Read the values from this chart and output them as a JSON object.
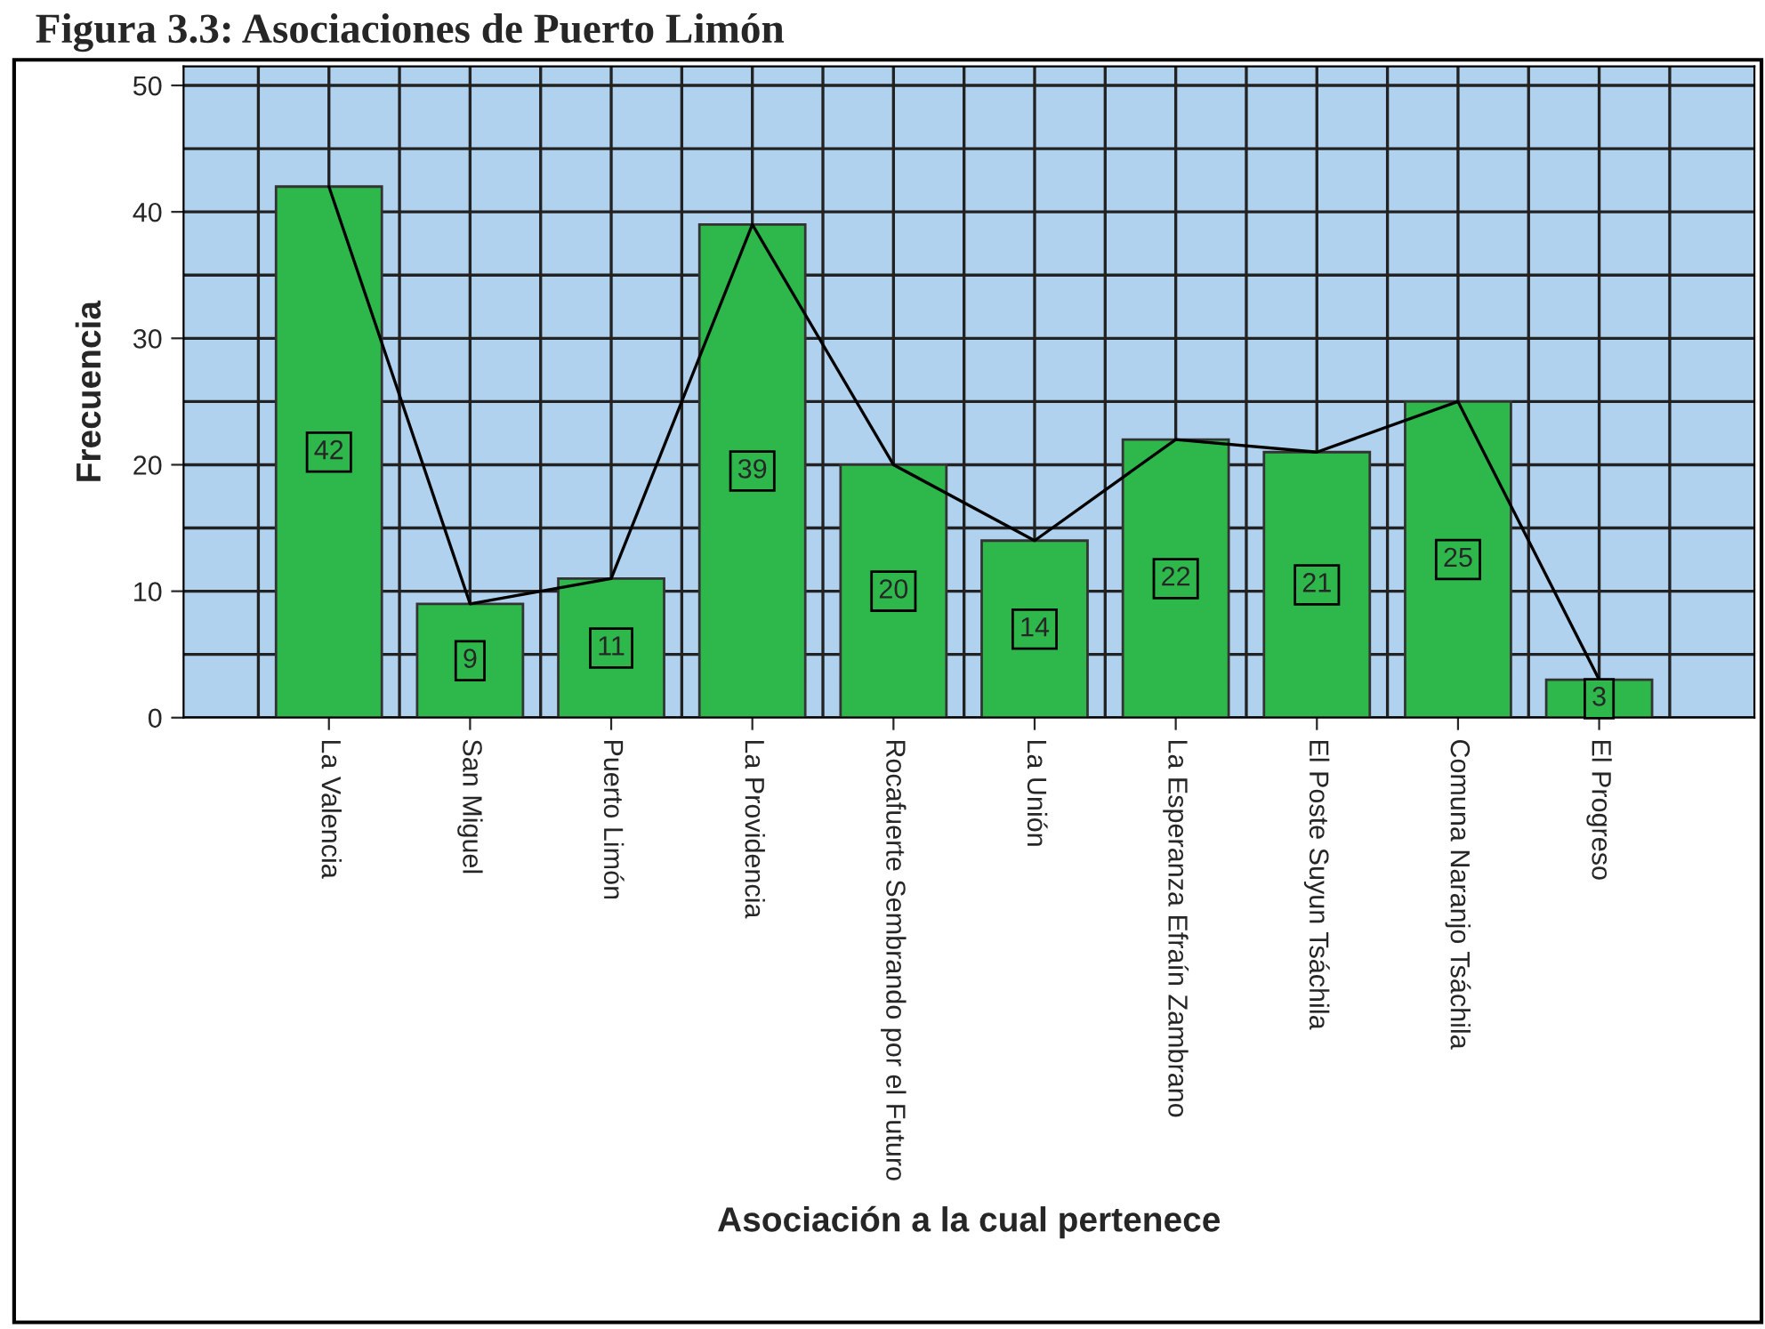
{
  "chart_data": {
    "type": "bar",
    "title": "Figura 3.3: Asociaciones de Puerto Limón",
    "xlabel": "Asociación a la cual pertenece",
    "ylabel": "Frecuencia",
    "categories": [
      "La Valencia",
      "San Miguel",
      "Puerto Limón",
      "La Providencia",
      "Rocafuerte Sembrando por el Futuro",
      "La Unión",
      "La Esperanza Efraín Zambrano",
      "El Poste Suyun Tsáchila",
      "Comuna Naranjo Tsáchila",
      "El Progreso"
    ],
    "series": [
      {
        "color": "#2eb84b",
        "values": [
          42,
          9,
          11,
          39,
          20,
          14,
          22,
          21,
          25,
          3
        ],
        "value_labels": [
          "42",
          "9",
          "11",
          "39",
          "20",
          "14",
          "22",
          "21",
          "25",
          "3"
        ]
      },
      {
        "type": "line",
        "color": "#000000",
        "values": [
          42,
          9,
          11,
          39,
          20,
          14,
          22,
          21,
          25,
          3
        ]
      }
    ],
    "ylim": [
      0,
      51.5
    ],
    "yticks": [
      0,
      10,
      20,
      30,
      40,
      50
    ],
    "grid": true
  }
}
